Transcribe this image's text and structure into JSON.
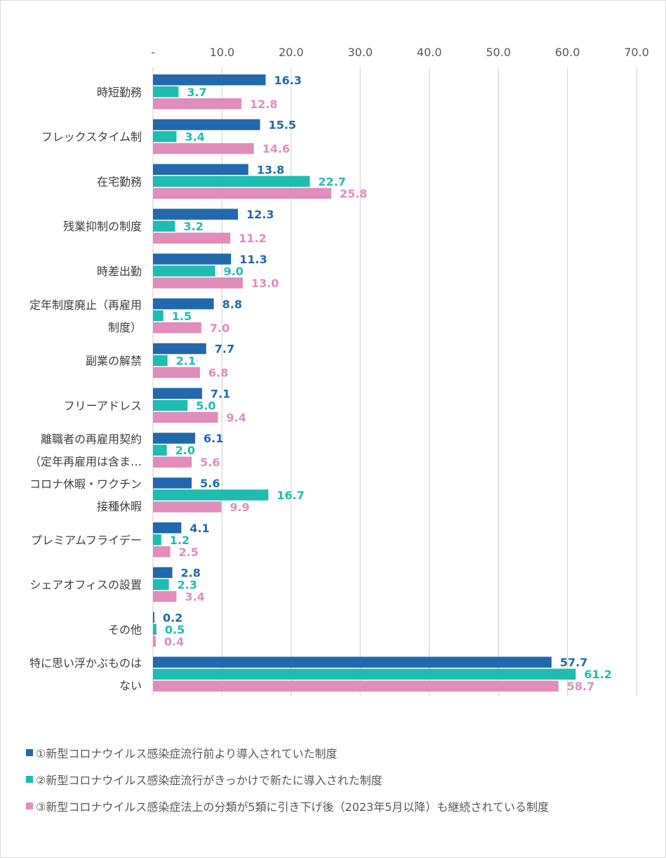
{
  "chart_data": {
    "type": "bar",
    "orientation": "horizontal",
    "title": "",
    "xlabel": "",
    "ylabel": "",
    "xlim": [
      0,
      70
    ],
    "axis_position": "top",
    "grid": true,
    "legend_position": "bottom",
    "ticks": [
      {
        "value": 0,
        "label": "-"
      },
      {
        "value": 10,
        "label": "10.0"
      },
      {
        "value": 20,
        "label": "20.0"
      },
      {
        "value": 30,
        "label": "30.0"
      },
      {
        "value": 40,
        "label": "40.0"
      },
      {
        "value": 50,
        "label": "50.0"
      },
      {
        "value": 60,
        "label": "60.0"
      },
      {
        "value": 70,
        "label": "70.0"
      }
    ],
    "categories": [
      [
        "時短勤務"
      ],
      [
        "フレックスタイム制"
      ],
      [
        "在宅勤務"
      ],
      [
        "残業抑制の制度"
      ],
      [
        "時差出勤"
      ],
      [
        "定年制度廃止（再雇用",
        "制度）"
      ],
      [
        "副業の解禁"
      ],
      [
        "フリーアドレス"
      ],
      [
        "離職者の再雇用契約",
        "（定年再雇用は含ま…"
      ],
      [
        "コロナ休暇・ワクチン",
        "接種休暇"
      ],
      [
        "プレミアムフライデー"
      ],
      [
        "シェアオフィスの設置"
      ],
      [
        "その他"
      ],
      [
        "特に思い浮かぶものは",
        "ない"
      ]
    ],
    "series": [
      {
        "name": "①新型コロナウイルス感染症流行前より導入されていた制度",
        "color": "#2268ad",
        "values": [
          16.3,
          15.5,
          13.8,
          12.3,
          11.3,
          8.8,
          7.7,
          7.1,
          6.1,
          5.6,
          4.1,
          2.8,
          0.2,
          57.7
        ]
      },
      {
        "name": "②新型コロナウイルス感染症流行がきっかけで新たに導入された制度",
        "color": "#1fbcb0",
        "values": [
          3.7,
          3.4,
          22.7,
          3.2,
          9.0,
          1.5,
          2.1,
          5.0,
          2.0,
          16.7,
          1.2,
          2.3,
          0.5,
          61.2
        ]
      },
      {
        "name": "③新型コロナウイルス感染症法上の分類が5類に引き下げ後（2023年5月以降）も継続されている制度",
        "color": "#e08dbb",
        "values": [
          12.8,
          14.6,
          25.8,
          11.2,
          13.0,
          7.0,
          6.8,
          9.4,
          5.6,
          9.9,
          2.5,
          3.4,
          0.4,
          58.7
        ]
      }
    ]
  }
}
